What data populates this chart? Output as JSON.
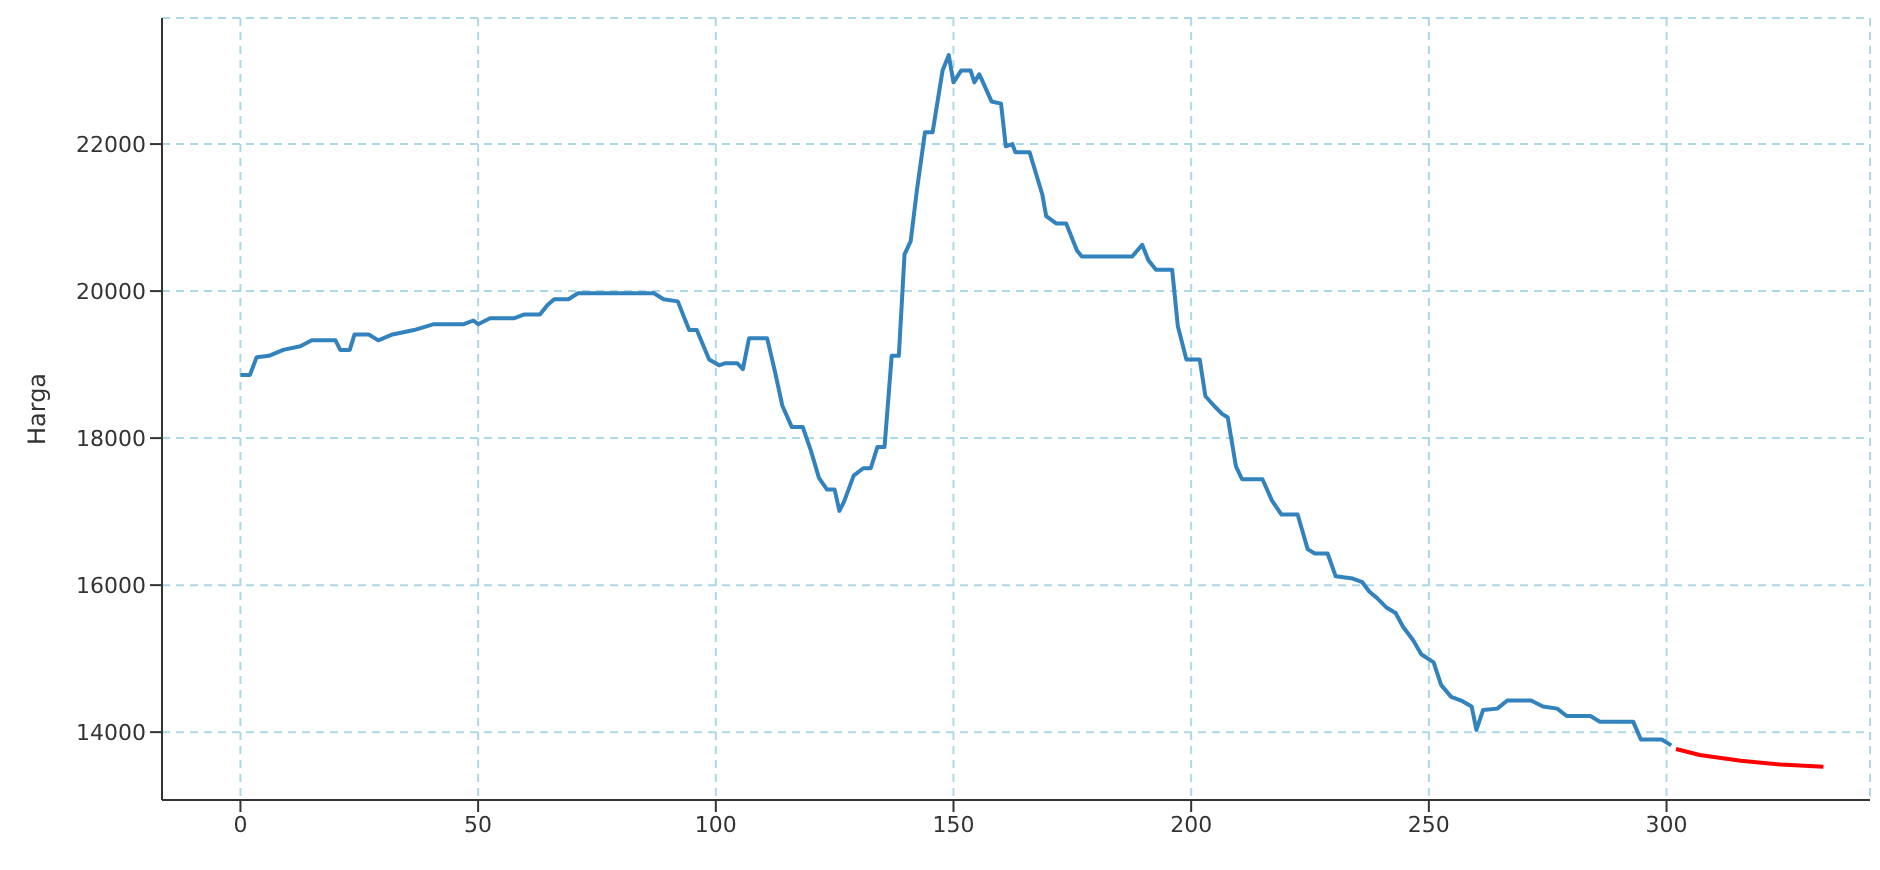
{
  "chart_data": {
    "type": "line",
    "ylabel": "Harga",
    "xlim": [
      -16.5,
      342.8
    ],
    "ylim": [
      13077,
      23715
    ],
    "xticks": [
      0,
      50,
      100,
      150,
      200,
      250,
      300
    ],
    "yticks": [
      14000,
      16000,
      18000,
      20000,
      22000
    ],
    "grid": true,
    "series": [
      {
        "color": "#3182bd",
        "x": [
          0,
          2,
          3.4,
          6,
          9,
          12.6,
          15,
          20,
          21,
          23,
          24,
          27,
          29,
          32,
          36.5,
          40.7,
          47,
          49,
          50,
          52.5,
          57.5,
          59.6,
          63,
          64.6,
          66,
          69,
          71,
          87,
          89,
          92,
          94.4,
          96,
          98.6,
          100.7,
          102,
          104.5,
          105.7,
          107,
          110.8,
          112.5,
          114,
          116,
          118.3,
          120,
          121.7,
          123.4,
          125,
          126,
          127,
          129,
          131,
          132.6,
          134,
          135.5,
          137,
          138.5,
          139.7,
          141,
          142.3,
          144,
          145.6,
          147.7,
          149,
          150,
          151.6,
          153.6,
          154.4,
          155.4,
          156,
          158,
          160,
          161,
          162.4,
          163,
          166,
          168.7,
          169.5,
          171.6,
          173.7,
          176,
          177,
          187.6,
          189.7,
          191,
          192.6,
          196,
          197.2,
          199,
          201.8,
          203,
          204.8,
          206.5,
          207.7,
          209.4,
          210.7,
          215,
          217,
          219,
          222.4,
          224.5,
          226,
          228.7,
          230.4,
          234,
          236,
          237.5,
          239,
          241,
          243,
          244.6,
          246.7,
          248.4,
          251,
          252.6,
          254.7,
          256.8,
          259,
          260,
          261.4,
          264.4,
          266.5,
          271.5,
          274,
          277,
          279,
          284,
          286,
          293,
          294.6,
          299,
          301
        ],
        "values": [
          18860,
          18860,
          19100,
          19120,
          19200,
          19250,
          19330,
          19330,
          19200,
          19200,
          19410,
          19410,
          19330,
          19410,
          19470,
          19550,
          19550,
          19600,
          19550,
          19630,
          19630,
          19680,
          19680,
          19810,
          19890,
          19890,
          19970,
          19970,
          19890,
          19860,
          19470,
          19470,
          19070,
          18990,
          19020,
          19020,
          18940,
          19360,
          19360,
          18890,
          18440,
          18150,
          18150,
          17830,
          17460,
          17300,
          17300,
          17010,
          17140,
          17490,
          17590,
          17590,
          17880,
          17880,
          19120,
          19120,
          20500,
          20680,
          21370,
          22160,
          22160,
          23000,
          23210,
          22840,
          23000,
          23000,
          22840,
          22950,
          22870,
          22580,
          22550,
          21970,
          22000,
          21890,
          21890,
          21310,
          21020,
          20920,
          20920,
          20550,
          20470,
          20470,
          20630,
          20420,
          20290,
          20290,
          19520,
          19070,
          19070,
          18570,
          18440,
          18330,
          18280,
          17620,
          17440,
          17440,
          17150,
          16960,
          16960,
          16490,
          16430,
          16430,
          16120,
          16090,
          16040,
          15910,
          15830,
          15700,
          15620,
          15430,
          15250,
          15060,
          14950,
          14640,
          14480,
          14430,
          14350,
          14030,
          14300,
          14320,
          14430,
          14430,
          14350,
          14320,
          14220,
          14220,
          14140,
          14140,
          13900,
          13900,
          13820
        ]
      },
      {
        "color": "#ff0000",
        "x": [
          302,
          307,
          315.6,
          324,
          333
        ],
        "values": [
          13770,
          13690,
          13610,
          13560,
          13530
        ]
      }
    ]
  }
}
